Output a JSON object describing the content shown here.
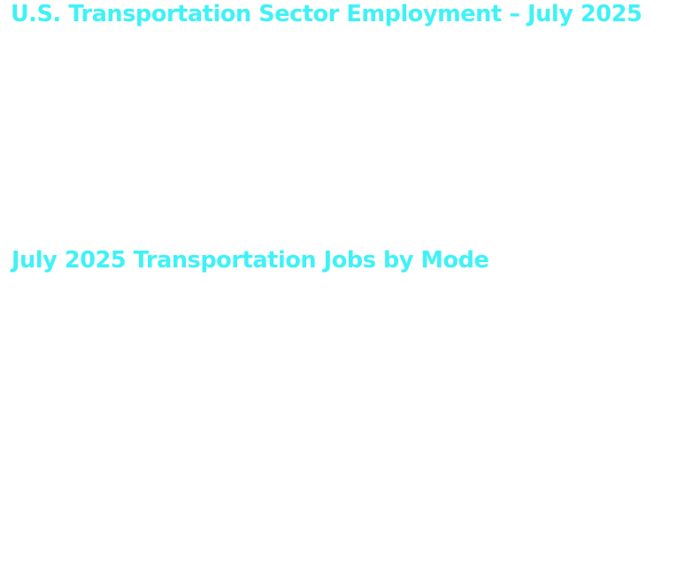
{
  "page": {
    "title": "U.S. Transportation Sector Employment – July 2025",
    "section_title": "July 2025 Transportation Jobs by Mode"
  },
  "colors": {
    "heading": "#3ff2f6",
    "background": "#ffffff"
  }
}
